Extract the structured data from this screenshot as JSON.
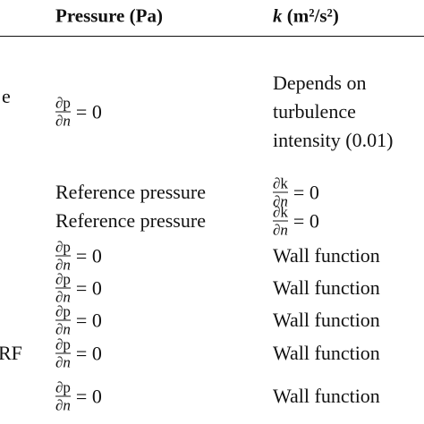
{
  "table": {
    "header": {
      "pressure": "Pressure (Pa)",
      "k_symbol": "k",
      "k_unit": "(m²/s²)"
    },
    "rows": [
      {
        "label": "e",
        "pressure": {
          "num": "∂p",
          "den": "∂n",
          "rhs": "= 0"
        },
        "k": [
          "Depends on",
          "turbulence",
          "intensity (0.01)"
        ]
      },
      {
        "pressure": "Reference pressure",
        "k": {
          "num": "∂k",
          "den": "∂n",
          "rhs": "= 0"
        }
      },
      {
        "pressure": "Reference pressure",
        "k": {
          "num": "∂k",
          "den": "∂n",
          "rhs": "= 0"
        }
      },
      {
        "pressure": {
          "num": "∂p",
          "den": "∂n",
          "rhs": "= 0"
        },
        "k": "Wall function"
      },
      {
        "pressure": {
          "num": "∂p",
          "den": "∂n",
          "rhs": "= 0"
        },
        "k": "Wall function"
      },
      {
        "pressure": {
          "num": "∂p",
          "den": "∂n",
          "rhs": "= 0"
        },
        "k": "Wall function"
      },
      {
        "label": "RF",
        "pressure": {
          "num": "∂p",
          "den": "∂n",
          "rhs": "= 0"
        },
        "k": "Wall function"
      },
      {
        "pressure": {
          "num": "∂p",
          "den": "∂n",
          "rhs": "= 0"
        },
        "k": "Wall function"
      }
    ]
  }
}
